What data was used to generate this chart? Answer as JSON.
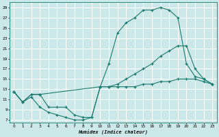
{
  "xlabel": "Humidex (Indice chaleur)",
  "bg_color": "#cce8e8",
  "grid_color": "#ffffff",
  "line_color": "#1a7a6e",
  "xlim": [
    -0.5,
    23.5
  ],
  "ylim": [
    6.5,
    30
  ],
  "xticks": [
    0,
    1,
    2,
    3,
    4,
    5,
    6,
    7,
    8,
    9,
    10,
    11,
    12,
    13,
    14,
    15,
    16,
    17,
    18,
    19,
    20,
    21,
    22,
    23
  ],
  "yticks": [
    7,
    9,
    11,
    13,
    15,
    17,
    19,
    21,
    23,
    25,
    27,
    29
  ],
  "line_max": {
    "x": [
      0,
      1,
      2,
      3,
      4,
      5,
      6,
      7,
      8,
      9,
      10,
      11,
      12,
      13,
      14,
      15,
      16,
      17,
      18,
      19,
      20,
      21,
      22,
      23
    ],
    "y": [
      12.5,
      10.5,
      12,
      12,
      9.5,
      9.5,
      9.5,
      8,
      7.5,
      7.5,
      13.5,
      18,
      24,
      26,
      27,
      28.5,
      28.5,
      29,
      28.5,
      27,
      18,
      15.5,
      15,
      14
    ]
  },
  "line_avg": {
    "x": [
      0,
      1,
      2,
      3,
      10,
      11,
      12,
      13,
      14,
      15,
      16,
      17,
      18,
      19,
      20,
      21,
      22,
      23
    ],
    "y": [
      12.5,
      10.5,
      12,
      12,
      13.5,
      13.5,
      14,
      15,
      16,
      17,
      18,
      19.5,
      20.5,
      21.5,
      21.5,
      17,
      15,
      14
    ]
  },
  "line_min": {
    "x": [
      0,
      1,
      2,
      3,
      4,
      5,
      6,
      7,
      8,
      9,
      10,
      11,
      12,
      13,
      14,
      15,
      16,
      17,
      18,
      19,
      20,
      21,
      22,
      23
    ],
    "y": [
      12.5,
      10.5,
      11.5,
      9.5,
      8.5,
      8,
      7.5,
      7,
      7,
      7.5,
      13.5,
      13.5,
      13.5,
      13.5,
      13.5,
      14,
      14,
      14.5,
      14.5,
      15,
      15,
      15,
      14.5,
      14
    ]
  }
}
